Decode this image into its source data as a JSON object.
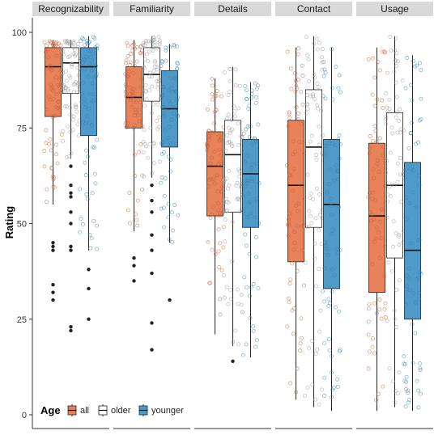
{
  "chart_data": {
    "type": "boxplot",
    "ylabel": "Rating",
    "xlabel": "",
    "ylim": [
      0,
      100
    ],
    "yticks": [
      0,
      25,
      50,
      75,
      100
    ],
    "legend": {
      "title": "Age",
      "position": "bottom-left",
      "items": [
        "all",
        "older",
        "younger"
      ]
    },
    "colors": {
      "all": "#e8825a",
      "older": "#ffffff",
      "younger": "#4f9ac9"
    },
    "panels": [
      {
        "name": "Recognizability",
        "groups": [
          {
            "group": "all",
            "min": 55,
            "q1": 78,
            "median": 91,
            "q3": 96,
            "max": 98,
            "outliers": [
              45,
              44,
              43,
              34,
              32,
              30
            ]
          },
          {
            "group": "older",
            "min": 67,
            "q1": 84,
            "median": 92,
            "q3": 96,
            "max": 98,
            "outliers": [
              65,
              60,
              58,
              57,
              53,
              50,
              44,
              43,
              23,
              22
            ]
          },
          {
            "group": "younger",
            "min": 43,
            "q1": 73,
            "median": 91,
            "q3": 96,
            "max": 99,
            "outliers": [
              38,
              33,
              25
            ]
          }
        ]
      },
      {
        "name": "Familiarity",
        "groups": [
          {
            "group": "all",
            "min": 48,
            "q1": 75,
            "median": 83,
            "q3": 91,
            "max": 98,
            "outliers": [
              41,
              39,
              35
            ]
          },
          {
            "group": "older",
            "min": 62,
            "q1": 82,
            "median": 89,
            "q3": 96,
            "max": 99,
            "outliers": [
              60,
              56,
              53,
              47,
              43,
              37,
              24,
              17
            ]
          },
          {
            "group": "younger",
            "min": 45,
            "q1": 70,
            "median": 80,
            "q3": 90,
            "max": 97,
            "outliers": [
              30
            ]
          }
        ]
      },
      {
        "name": "Details",
        "groups": [
          {
            "group": "all",
            "min": 21,
            "q1": 52,
            "median": 65,
            "q3": 74,
            "max": 88,
            "outliers": []
          },
          {
            "group": "older",
            "min": 18,
            "q1": 53,
            "median": 68,
            "q3": 77,
            "max": 91,
            "outliers": [
              14
            ]
          },
          {
            "group": "younger",
            "min": 15,
            "q1": 49,
            "median": 63,
            "q3": 72,
            "max": 87,
            "outliers": []
          }
        ]
      },
      {
        "name": "Contact",
        "groups": [
          {
            "group": "all",
            "min": 4,
            "q1": 40,
            "median": 60,
            "q3": 77,
            "max": 96,
            "outliers": []
          },
          {
            "group": "older",
            "min": 2,
            "q1": 49,
            "median": 70,
            "q3": 85,
            "max": 99,
            "outliers": []
          },
          {
            "group": "younger",
            "min": 1,
            "q1": 33,
            "median": 55,
            "q3": 72,
            "max": 96,
            "outliers": []
          }
        ]
      },
      {
        "name": "Usage",
        "groups": [
          {
            "group": "all",
            "min": 1,
            "q1": 32,
            "median": 52,
            "q3": 71,
            "max": 96,
            "outliers": []
          },
          {
            "group": "older",
            "min": 2,
            "q1": 41,
            "median": 60,
            "q3": 79,
            "max": 99,
            "outliers": []
          },
          {
            "group": "younger",
            "min": 1,
            "q1": 25,
            "median": 43,
            "q3": 66,
            "max": 94,
            "outliers": []
          }
        ]
      }
    ]
  }
}
